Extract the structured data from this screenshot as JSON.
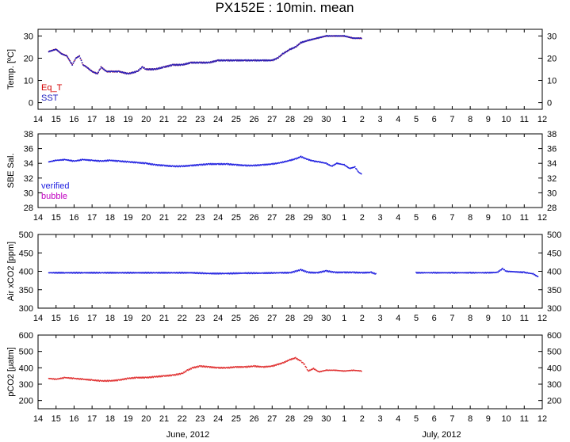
{
  "title": "PX152E : 10min. mean",
  "months": [
    "June, 2012",
    "July, 2012"
  ],
  "x_tick_labels": [
    "14",
    "15",
    "16",
    "17",
    "18",
    "19",
    "20",
    "21",
    "22",
    "23",
    "24",
    "25",
    "26",
    "27",
    "28",
    "29",
    "30",
    "1",
    "2",
    "3",
    "4",
    "5",
    "6",
    "7",
    "8",
    "9",
    "10",
    "11",
    "12"
  ],
  "chart_data": [
    {
      "type": "scatter",
      "ylabel": "Temp. [ºC]",
      "ylim": [
        -3,
        33
      ],
      "yticks": [
        0,
        10,
        20,
        30
      ],
      "xlim": [
        14,
        42
      ],
      "legend_placement": "bottom-left",
      "series": [
        {
          "name": "Eq_T",
          "color": "#d40000",
          "x": [
            14.6,
            15.0,
            15.3,
            15.6,
            15.9,
            16.1,
            16.3,
            16.5,
            16.7,
            17.0,
            17.3,
            17.5,
            17.8,
            18.1,
            18.5,
            19.0,
            19.5,
            19.8,
            20.0,
            20.5,
            21.0,
            21.5,
            22.0,
            22.5,
            23.0,
            23.5,
            24.0,
            24.5,
            25.0,
            25.5,
            26.0,
            26.5,
            27.0,
            27.3,
            27.6,
            28.0,
            28.3,
            28.6,
            29.0,
            29.5,
            30.0,
            30.5,
            31.0,
            31.5,
            32.0
          ],
          "y": [
            23,
            24,
            22,
            21,
            17,
            20,
            21,
            17,
            16,
            14,
            13,
            16,
            14,
            14,
            14,
            13,
            14,
            16,
            15,
            15,
            16,
            17,
            17,
            18,
            18,
            18,
            19,
            19,
            19,
            19,
            19,
            19,
            19,
            20,
            22,
            24,
            25,
            27,
            28,
            29,
            30,
            30,
            30,
            29,
            29
          ]
        },
        {
          "name": "SST",
          "color": "#2020c0",
          "x": [
            14.6,
            15.0,
            15.3,
            15.6,
            15.9,
            16.1,
            16.3,
            16.5,
            16.7,
            17.0,
            17.3,
            17.5,
            17.8,
            18.1,
            18.5,
            19.0,
            19.5,
            19.8,
            20.0,
            20.5,
            21.0,
            21.5,
            22.0,
            22.5,
            23.0,
            23.5,
            24.0,
            24.5,
            25.0,
            25.5,
            26.0,
            26.5,
            27.0,
            27.3,
            27.6,
            28.0,
            28.3,
            28.6,
            29.0,
            29.5,
            30.0,
            30.5,
            31.0,
            31.5,
            32.0
          ],
          "y": [
            23,
            24,
            22,
            21,
            17,
            20,
            21,
            17,
            16,
            14,
            13,
            16,
            14,
            14,
            14,
            13,
            14,
            16,
            15,
            15,
            16,
            17,
            17,
            18,
            18,
            18,
            19,
            19,
            19,
            19,
            19,
            19,
            19,
            20,
            22,
            24,
            25,
            27,
            28,
            29,
            30,
            30,
            30,
            29,
            29
          ]
        }
      ]
    },
    {
      "type": "scatter",
      "ylabel": "SBE Sal.",
      "ylim": [
        28,
        38
      ],
      "yticks": [
        28,
        30,
        32,
        34,
        36,
        38
      ],
      "xlim": [
        14,
        42
      ],
      "legend_placement": "bottom-left",
      "series": [
        {
          "name": "verified",
          "color": "#2020e0",
          "x": [
            14.6,
            15.0,
            15.5,
            16.0,
            16.5,
            17.0,
            17.5,
            18.0,
            18.5,
            19.0,
            19.5,
            20.0,
            20.5,
            21.0,
            21.5,
            22.0,
            22.5,
            23.0,
            23.5,
            24.0,
            24.5,
            25.0,
            25.5,
            26.0,
            26.5,
            27.0,
            27.5,
            28.0,
            28.3,
            28.6,
            29.0,
            29.3,
            29.6,
            30.0,
            30.3,
            30.6,
            31.0,
            31.3,
            31.6,
            31.8,
            32.0
          ],
          "y": [
            34.2,
            34.4,
            34.5,
            34.3,
            34.5,
            34.4,
            34.3,
            34.4,
            34.3,
            34.2,
            34.1,
            34.0,
            33.8,
            33.7,
            33.6,
            33.6,
            33.7,
            33.8,
            33.9,
            33.9,
            33.9,
            33.8,
            33.7,
            33.7,
            33.8,
            33.9,
            34.1,
            34.4,
            34.6,
            34.9,
            34.5,
            34.3,
            34.2,
            34.0,
            33.6,
            34.0,
            33.8,
            33.3,
            33.5,
            32.8,
            32.5
          ]
        },
        {
          "name": "bubble",
          "color": "#c000c0",
          "x": [],
          "y": []
        }
      ]
    },
    {
      "type": "scatter",
      "ylabel": "Air xCO2 [ppm]",
      "ylim": [
        300,
        500
      ],
      "yticks": [
        300,
        350,
        400,
        450,
        500
      ],
      "xlim": [
        14,
        42
      ],
      "series": [
        {
          "color": "#2020e0",
          "x": [
            14.6,
            15.5,
            16.5,
            17.5,
            18.5,
            19.5,
            20.5,
            21.5,
            22.5,
            23.5,
            24.5,
            25.5,
            26.5,
            27.5,
            28.0,
            28.6,
            29.0,
            29.5,
            30.0,
            30.5,
            31.0,
            31.5,
            32.0,
            32.5,
            32.8,
            35.0,
            36.0,
            37.0,
            38.0,
            39.0,
            39.5,
            39.8,
            40.0,
            41.0,
            41.5,
            41.8
          ],
          "y": [
            396,
            396,
            396,
            396,
            396,
            396,
            396,
            396,
            396,
            394,
            394,
            395,
            395,
            396,
            396,
            404,
            397,
            396,
            401,
            397,
            397,
            397,
            396,
            397,
            392,
            396,
            396,
            396,
            396,
            396,
            397,
            407,
            400,
            397,
            393,
            384
          ]
        }
      ]
    },
    {
      "type": "scatter",
      "ylabel": "pCO2 [μatm]",
      "ylim": [
        150,
        600
      ],
      "yticks": [
        200,
        300,
        400,
        500,
        600
      ],
      "xlim": [
        14,
        42
      ],
      "series": [
        {
          "color": "#e03030",
          "x": [
            14.6,
            15.0,
            15.5,
            16.0,
            16.5,
            17.0,
            17.5,
            18.0,
            18.5,
            19.0,
            19.5,
            20.0,
            20.5,
            21.0,
            21.5,
            22.0,
            22.3,
            22.6,
            23.0,
            23.5,
            24.0,
            24.5,
            25.0,
            25.5,
            26.0,
            26.5,
            27.0,
            27.3,
            27.6,
            28.0,
            28.3,
            28.6,
            28.8,
            29.0,
            29.3,
            29.6,
            30.0,
            30.5,
            31.0,
            31.5,
            32.0
          ],
          "y": [
            335,
            330,
            340,
            335,
            330,
            325,
            320,
            320,
            325,
            335,
            340,
            340,
            345,
            350,
            355,
            365,
            385,
            400,
            410,
            405,
            400,
            400,
            405,
            405,
            410,
            405,
            410,
            420,
            430,
            450,
            460,
            440,
            420,
            380,
            395,
            375,
            385,
            385,
            380,
            385,
            380
          ]
        }
      ]
    }
  ]
}
